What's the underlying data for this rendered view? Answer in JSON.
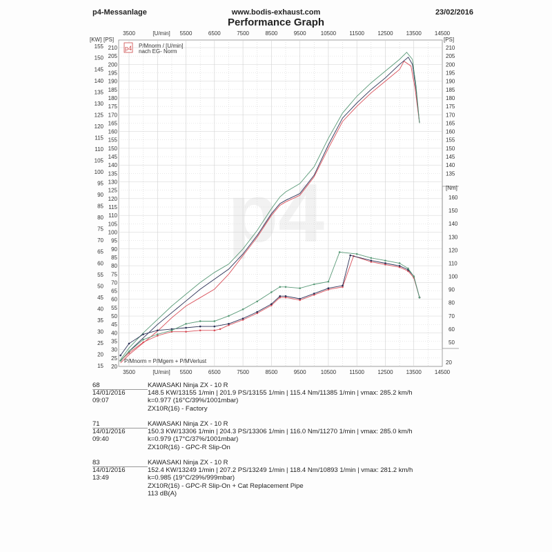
{
  "header": {
    "left": "p4-Messanlage",
    "center": "www.bodis-exhaust.com",
    "right": "23/02/2016",
    "title": "Performance Graph"
  },
  "legend_box": {
    "logo": "p4",
    "line1": "P/Mnorm / [U/min]",
    "line2": "nach EG- Norm"
  },
  "formula": "P/Mnorm = P/Mgem + P/MVerlust",
  "axes": {
    "x_unit": "[U/min]",
    "x_ticks": [
      3500,
      5500,
      6500,
      7500,
      8500,
      9500,
      10500,
      11500,
      12500,
      13500,
      14500
    ],
    "kw_unit": "[KW]",
    "kw_ticks": [
      15,
      20,
      25,
      30,
      35,
      40,
      45,
      50,
      55,
      60,
      65,
      70,
      75,
      80,
      85,
      90,
      95,
      100,
      105,
      110,
      115,
      120,
      125,
      130,
      135,
      140,
      145,
      150,
      155
    ],
    "ps_unit": "[PS]",
    "ps_ticks": [
      20,
      25,
      30,
      35,
      40,
      45,
      50,
      55,
      60,
      65,
      70,
      75,
      80,
      85,
      90,
      95,
      100,
      105,
      110,
      115,
      120,
      125,
      130,
      135,
      140,
      145,
      150,
      155,
      160,
      165,
      170,
      175,
      180,
      185,
      190,
      195,
      200,
      205,
      210
    ],
    "nm_unit": "[Nm]",
    "nm_ticks": [
      50,
      60,
      70,
      80,
      90,
      100,
      110,
      120,
      130,
      140,
      150,
      160
    ]
  },
  "colors": {
    "run68": "#d9505a",
    "run71": "#2a2f55",
    "run83": "#5a9a78",
    "grid": "#d0d0d0"
  },
  "runs": [
    {
      "id": "68",
      "date": "14/01/2016  09:07",
      "vehicle": "KAWASAKI Ninja ZX - 10 R",
      "results": "148.5 KW/13155 1/min  |  201.9 PS/13155 1/min  |  115.4 Nm/11385 1/min | vmax: 285.2 km/h",
      "conditions": "k=0.977 (16°C/39%/1001mbar)",
      "config": "ZX10R(16) - Factory",
      "extra": ""
    },
    {
      "id": "71",
      "date": "14/01/2016  09:40",
      "vehicle": "KAWASAKI Ninja ZX - 10 R",
      "results": "150.3 KW/13306 1/min  |  204.3 PS/13306 1/min  |  116.0 Nm/11270 1/min | vmax: 285.0 km/h",
      "conditions": "k=0.979 (17°C/37%/1001mbar)",
      "config": "ZX10R(16) - GPC-R Slip-On",
      "extra": ""
    },
    {
      "id": "83",
      "date": "14/01/2016  13:49",
      "vehicle": "KAWASAKI Ninja ZX - 10 R",
      "results": "152.4 KW/13249 1/min  |  207.2 PS/13249 1/min  |  118.4 Nm/10893 1/min | vmax: 281.2 km/h",
      "conditions": "k=0.985 (19°C/29%/999mbar)",
      "config": "ZX10R(16) - GPC-R Slip-On + Cat Replacement Pipe",
      "extra": "113 dB(A)"
    }
  ],
  "chart_data": {
    "type": "line",
    "title": "Performance Graph",
    "xlabel": "[U/min]",
    "ylabel": "[PS] / [KW]",
    "y2label": "[Nm]",
    "xlim": [
      3150,
      14500
    ],
    "ylim_ps": [
      20,
      210
    ],
    "ylim_kw": [
      15,
      155
    ],
    "ylim_nm": [
      20,
      165
    ],
    "grid": true,
    "legend": [
      "68 ZX10R(16) - Factory",
      "71 ZX10R(16) - GPC-R Slip-On",
      "83 ZX10R(16) - GPC-R Slip-On + Cat Replacement Pipe"
    ],
    "power_ps": [
      {
        "name": "68",
        "color": "#d9505a",
        "x": [
          3200,
          3500,
          4000,
          4500,
          5000,
          5500,
          6000,
          6500,
          7000,
          7500,
          8000,
          8500,
          8800,
          9000,
          9500,
          10000,
          10500,
          11000,
          11500,
          12000,
          12500,
          13000,
          13155,
          13400,
          13550,
          13700
        ],
        "values": [
          22,
          27,
          34,
          41,
          49,
          56,
          61,
          66,
          75,
          86,
          97,
          110,
          116,
          118,
          122,
          133,
          150,
          166,
          175,
          183,
          190,
          197,
          201.9,
          199,
          185,
          165
        ]
      },
      {
        "name": "71",
        "color": "#2a2f55",
        "x": [
          3200,
          3500,
          4000,
          4500,
          5000,
          5500,
          6000,
          6500,
          7000,
          7500,
          8000,
          8500,
          8800,
          9000,
          9500,
          10000,
          10500,
          11000,
          11500,
          12000,
          12500,
          13000,
          13306,
          13450,
          13580,
          13700
        ],
        "values": [
          23,
          29,
          37,
          45,
          52,
          59,
          66,
          72,
          78,
          87,
          98,
          111,
          117,
          119,
          123,
          134,
          152,
          168,
          177,
          185,
          192,
          200,
          204.3,
          200,
          185,
          165
        ]
      },
      {
        "name": "83",
        "color": "#5a9a78",
        "x": [
          3200,
          3500,
          4000,
          4500,
          5000,
          5500,
          6000,
          6500,
          7000,
          7500,
          8000,
          8500,
          8800,
          9000,
          9500,
          10000,
          10500,
          11000,
          11500,
          12000,
          12500,
          13000,
          13249,
          13450,
          13580,
          13700
        ],
        "values": [
          24,
          31,
          40,
          48,
          56,
          63,
          70,
          76,
          81,
          90,
          101,
          114,
          121,
          124,
          129,
          139,
          156,
          171,
          181,
          189,
          196,
          203,
          207.2,
          203,
          187,
          165
        ]
      }
    ],
    "torque_nm": [
      {
        "name": "68",
        "color": "#d9505a",
        "x": [
          3200,
          3500,
          4000,
          4500,
          5000,
          5500,
          6000,
          6500,
          6700,
          7000,
          7500,
          8000,
          8500,
          8800,
          9000,
          9500,
          10000,
          10500,
          11000,
          11385,
          12000,
          12500,
          13000,
          13300,
          13500,
          13700
        ],
        "values": [
          36,
          42,
          50,
          55,
          58,
          58,
          59,
          59,
          60,
          63,
          67,
          72,
          78,
          84,
          84,
          82,
          86,
          90,
          92,
          115.4,
          111,
          109,
          107,
          104,
          99,
          84
        ]
      },
      {
        "name": "71",
        "color": "#2a2f55",
        "x": [
          3200,
          3500,
          4000,
          4500,
          5000,
          5500,
          6000,
          6500,
          7000,
          7500,
          8000,
          8500,
          8800,
          9000,
          9500,
          10000,
          10500,
          11000,
          11270,
          12000,
          12500,
          13000,
          13300,
          13500,
          13700
        ],
        "values": [
          40,
          49,
          56,
          59,
          60,
          61,
          62,
          62,
          64,
          68,
          73,
          79,
          85,
          85,
          83,
          87,
          91,
          93,
          116.0,
          112,
          110,
          108,
          105,
          100,
          84
        ]
      },
      {
        "name": "83",
        "color": "#5a9a78",
        "x": [
          3200,
          3500,
          4000,
          4500,
          5000,
          5500,
          6000,
          6500,
          7000,
          7500,
          8000,
          8500,
          8800,
          9000,
          9500,
          10000,
          10500,
          10893,
          11500,
          12000,
          12500,
          13000,
          13300,
          13500,
          13700
        ],
        "values": [
          36,
          43,
          52,
          56,
          59,
          64,
          66,
          66,
          70,
          75,
          81,
          88,
          92,
          92,
          91,
          94,
          96,
          118.4,
          117,
          114,
          112,
          110,
          106,
          100,
          84
        ]
      }
    ]
  }
}
